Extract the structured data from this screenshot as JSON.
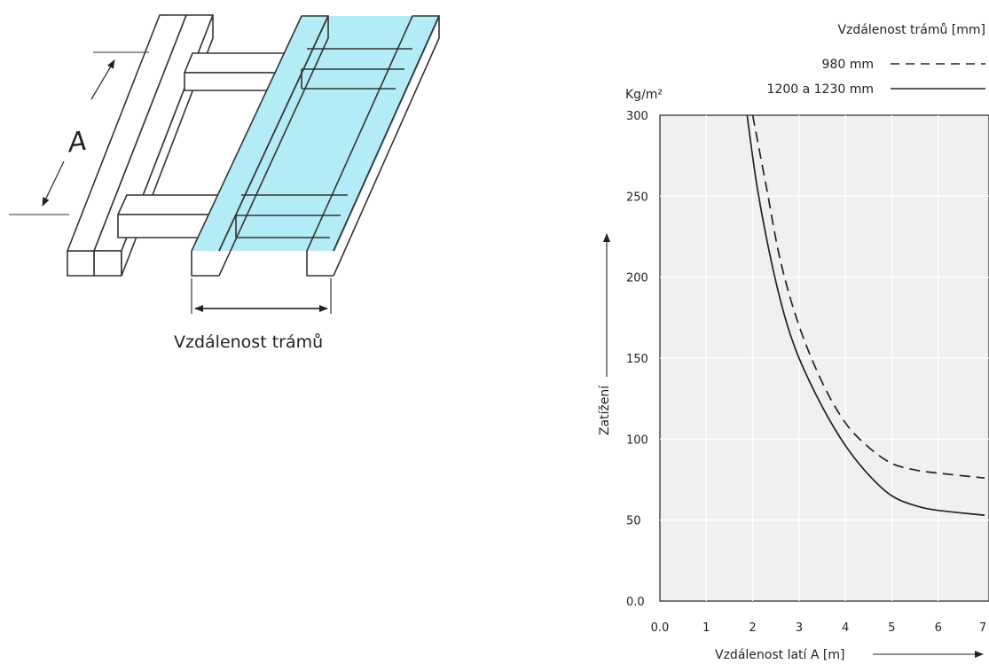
{
  "diagram": {
    "label_A": "A",
    "caption": "Vzdálenost trámů",
    "highlight_color": "#b3ecf7"
  },
  "chart_data": {
    "type": "line",
    "legend_title": "Vzdálenost trámů [mm]",
    "legend_position": "top-right",
    "ylabel": "Zatížení",
    "y_unit": "Kg/m²",
    "xlabel": "Vzdálenost latí A [m]",
    "xlim": [
      0,
      7
    ],
    "ylim": [
      0,
      300
    ],
    "grid": true,
    "x_ticks": [
      "0.0",
      "1",
      "2",
      "3",
      "4",
      "5",
      "6",
      "7"
    ],
    "y_ticks": [
      "0.0",
      "50",
      "100",
      "150",
      "200",
      "250",
      "300"
    ],
    "series": [
      {
        "name": "980 mm",
        "style": "dashed",
        "color": "#222222",
        "x": [
          2.0,
          2.3,
          2.6,
          3.0,
          3.5,
          4.0,
          4.5,
          5.0,
          5.5,
          6.0,
          7.0
        ],
        "y": [
          300,
          255,
          210,
          170,
          135,
          110,
          95,
          85,
          81,
          79,
          76
        ]
      },
      {
        "name": "1200 a 1230 mm",
        "style": "solid",
        "color": "#222222",
        "x": [
          1.88,
          2.1,
          2.4,
          2.7,
          3.0,
          3.5,
          4.0,
          4.5,
          5.0,
          5.5,
          6.0,
          7.0
        ],
        "y": [
          300,
          255,
          210,
          175,
          150,
          120,
          96,
          78,
          65,
          59,
          56,
          53
        ]
      }
    ]
  }
}
